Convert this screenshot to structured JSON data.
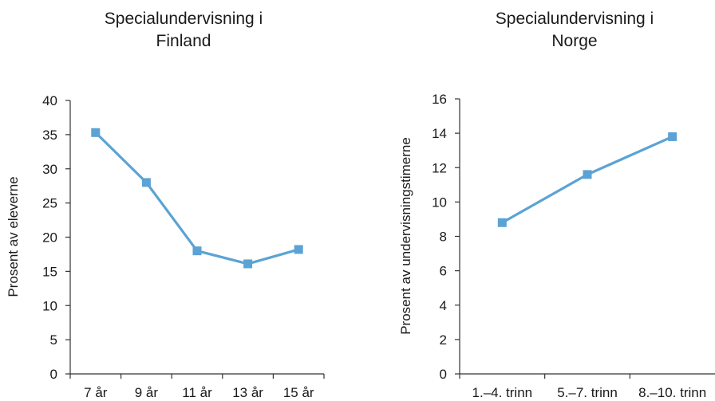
{
  "chart_data": [
    {
      "type": "line",
      "title": [
        "Specialundervisning i",
        "Finland"
      ],
      "xlabel": "",
      "ylabel": "Prosent av eleverne",
      "categories": [
        "7 år",
        "9 år",
        "11 år",
        "13 år",
        "15 år"
      ],
      "series": [
        {
          "values": [
            35.3,
            28.0,
            18.0,
            16.1,
            18.2
          ]
        }
      ],
      "ylim": [
        0,
        40
      ],
      "yticks": [
        0,
        5,
        10,
        15,
        20,
        25,
        30,
        35,
        40
      ],
      "grid": false,
      "legend": "none",
      "line_color": "#5ba3d4"
    },
    {
      "type": "line",
      "title": [
        "Specialundervisning i",
        "Norge"
      ],
      "xlabel": "",
      "ylabel": "Prosent av undervisningstimerne",
      "categories": [
        "1.–4. trinn",
        "5.–7. trinn",
        "8.–10. trinn"
      ],
      "series": [
        {
          "values": [
            8.8,
            11.6,
            13.8
          ]
        }
      ],
      "ylim": [
        0,
        16
      ],
      "yticks": [
        0,
        2,
        4,
        6,
        8,
        10,
        12,
        14,
        16
      ],
      "grid": false,
      "legend": "none",
      "line_color": "#5ba3d4"
    }
  ]
}
